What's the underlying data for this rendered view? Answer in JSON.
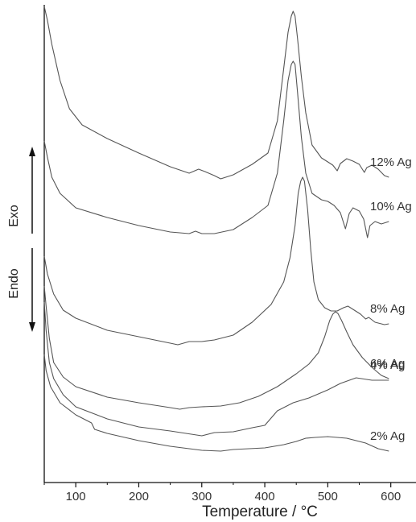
{
  "chart_data": {
    "type": "line",
    "title": "",
    "xlabel": "Temperature / °C",
    "ylabel": "",
    "xlim": [
      50,
      640
    ],
    "xticks": [
      100,
      200,
      300,
      400,
      500,
      600
    ],
    "y_tick_labels": "none",
    "grid": false,
    "legend": "none (curves labelled at right end)",
    "indicators": {
      "exo_label": "Exo",
      "endo_label": "Endo"
    },
    "series": [
      {
        "name": "12% Ag",
        "color": "#555555",
        "points": [
          [
            50,
            8
          ],
          [
            55,
            25
          ],
          [
            62,
            55
          ],
          [
            75,
            100
          ],
          [
            90,
            135
          ],
          [
            110,
            155
          ],
          [
            150,
            172
          ],
          [
            200,
            190
          ],
          [
            250,
            207
          ],
          [
            280,
            215
          ],
          [
            295,
            210
          ],
          [
            305,
            213
          ],
          [
            320,
            218
          ],
          [
            330,
            222
          ],
          [
            350,
            217
          ],
          [
            380,
            204
          ],
          [
            405,
            190
          ],
          [
            420,
            150
          ],
          [
            430,
            85
          ],
          [
            437,
            40
          ],
          [
            442,
            20
          ],
          [
            445,
            14
          ],
          [
            448,
            20
          ],
          [
            452,
            48
          ],
          [
            458,
            95
          ],
          [
            465,
            140
          ],
          [
            475,
            180
          ],
          [
            490,
            196
          ],
          [
            500,
            201
          ],
          [
            508,
            205
          ],
          [
            515,
            212
          ],
          [
            520,
            203
          ],
          [
            530,
            197
          ],
          [
            540,
            200
          ],
          [
            550,
            204
          ],
          [
            558,
            214
          ],
          [
            562,
            208
          ],
          [
            570,
            205
          ],
          [
            580,
            210
          ],
          [
            590,
            218
          ],
          [
            597,
            220
          ]
        ]
      },
      {
        "name": "10% Ag",
        "color": "#555555",
        "points": [
          [
            50,
            175
          ],
          [
            55,
            195
          ],
          [
            62,
            220
          ],
          [
            75,
            240
          ],
          [
            100,
            258
          ],
          [
            150,
            270
          ],
          [
            200,
            280
          ],
          [
            250,
            288
          ],
          [
            280,
            290
          ],
          [
            290,
            287
          ],
          [
            300,
            290
          ],
          [
            320,
            290
          ],
          [
            350,
            285
          ],
          [
            380,
            270
          ],
          [
            405,
            255
          ],
          [
            420,
            215
          ],
          [
            430,
            150
          ],
          [
            437,
            100
          ],
          [
            442,
            80
          ],
          [
            445,
            76
          ],
          [
            448,
            80
          ],
          [
            452,
            115
          ],
          [
            458,
            170
          ],
          [
            465,
            215
          ],
          [
            475,
            240
          ],
          [
            490,
            248
          ],
          [
            500,
            250
          ],
          [
            510,
            255
          ],
          [
            520,
            264
          ],
          [
            528,
            284
          ],
          [
            534,
            265
          ],
          [
            540,
            258
          ],
          [
            550,
            262
          ],
          [
            557,
            272
          ],
          [
            563,
            295
          ],
          [
            567,
            280
          ],
          [
            575,
            275
          ],
          [
            585,
            278
          ],
          [
            597,
            275
          ]
        ]
      },
      {
        "name": "8% Ag",
        "color": "#555555",
        "points": [
          [
            50,
            318
          ],
          [
            55,
            340
          ],
          [
            65,
            365
          ],
          [
            80,
            385
          ],
          [
            100,
            395
          ],
          [
            150,
            410
          ],
          [
            200,
            418
          ],
          [
            250,
            426
          ],
          [
            262,
            428
          ],
          [
            280,
            424
          ],
          [
            300,
            424
          ],
          [
            320,
            422
          ],
          [
            350,
            416
          ],
          [
            380,
            400
          ],
          [
            410,
            378
          ],
          [
            430,
            350
          ],
          [
            440,
            320
          ],
          [
            448,
            280
          ],
          [
            453,
            240
          ],
          [
            457,
            225
          ],
          [
            460,
            220
          ],
          [
            463,
            225
          ],
          [
            468,
            260
          ],
          [
            473,
            310
          ],
          [
            478,
            350
          ],
          [
            485,
            372
          ],
          [
            495,
            382
          ],
          [
            505,
            386
          ],
          [
            515,
            386
          ],
          [
            525,
            382
          ],
          [
            532,
            380
          ],
          [
            540,
            384
          ],
          [
            552,
            390
          ],
          [
            560,
            396
          ],
          [
            565,
            394
          ],
          [
            575,
            400
          ],
          [
            590,
            403
          ],
          [
            597,
            402
          ]
        ]
      },
      {
        "name": "6% Ag",
        "color": "#555555",
        "points": [
          [
            50,
            355
          ],
          [
            53,
            380
          ],
          [
            58,
            420
          ],
          [
            65,
            450
          ],
          [
            80,
            468
          ],
          [
            100,
            480
          ],
          [
            150,
            493
          ],
          [
            200,
            500
          ],
          [
            250,
            506
          ],
          [
            265,
            508
          ],
          [
            280,
            506
          ],
          [
            300,
            505
          ],
          [
            330,
            504
          ],
          [
            360,
            500
          ],
          [
            390,
            492
          ],
          [
            420,
            480
          ],
          [
            450,
            464
          ],
          [
            470,
            452
          ],
          [
            485,
            438
          ],
          [
            495,
            418
          ],
          [
            503,
            398
          ],
          [
            508,
            390
          ],
          [
            512,
            387
          ],
          [
            516,
            389
          ],
          [
            522,
            398
          ],
          [
            530,
            412
          ],
          [
            540,
            428
          ],
          [
            555,
            444
          ],
          [
            570,
            456
          ],
          [
            585,
            466
          ],
          [
            597,
            470
          ]
        ]
      },
      {
        "name": "4% Ag",
        "color": "#555555",
        "points": [
          [
            50,
            375
          ],
          [
            53,
            410
          ],
          [
            58,
            450
          ],
          [
            65,
            470
          ],
          [
            80,
            490
          ],
          [
            100,
            505
          ],
          [
            150,
            520
          ],
          [
            200,
            530
          ],
          [
            250,
            535
          ],
          [
            300,
            541
          ],
          [
            320,
            537
          ],
          [
            350,
            536
          ],
          [
            380,
            531
          ],
          [
            400,
            528
          ],
          [
            420,
            510
          ],
          [
            445,
            500
          ],
          [
            470,
            494
          ],
          [
            500,
            484
          ],
          [
            520,
            476
          ],
          [
            545,
            469
          ],
          [
            570,
            472
          ],
          [
            597,
            472
          ]
        ]
      },
      {
        "name": "2% Ag",
        "color": "#555555",
        "points": [
          [
            50,
            440
          ],
          [
            53,
            460
          ],
          [
            60,
            480
          ],
          [
            75,
            500
          ],
          [
            100,
            515
          ],
          [
            125,
            525
          ],
          [
            130,
            533
          ],
          [
            150,
            538
          ],
          [
            200,
            547
          ],
          [
            250,
            554
          ],
          [
            300,
            559
          ],
          [
            330,
            560
          ],
          [
            350,
            558
          ],
          [
            400,
            556
          ],
          [
            430,
            552
          ],
          [
            450,
            548
          ],
          [
            465,
            544
          ],
          [
            480,
            543
          ],
          [
            500,
            542
          ],
          [
            530,
            544
          ],
          [
            560,
            550
          ],
          [
            580,
            557
          ],
          [
            597,
            560
          ]
        ]
      }
    ]
  }
}
